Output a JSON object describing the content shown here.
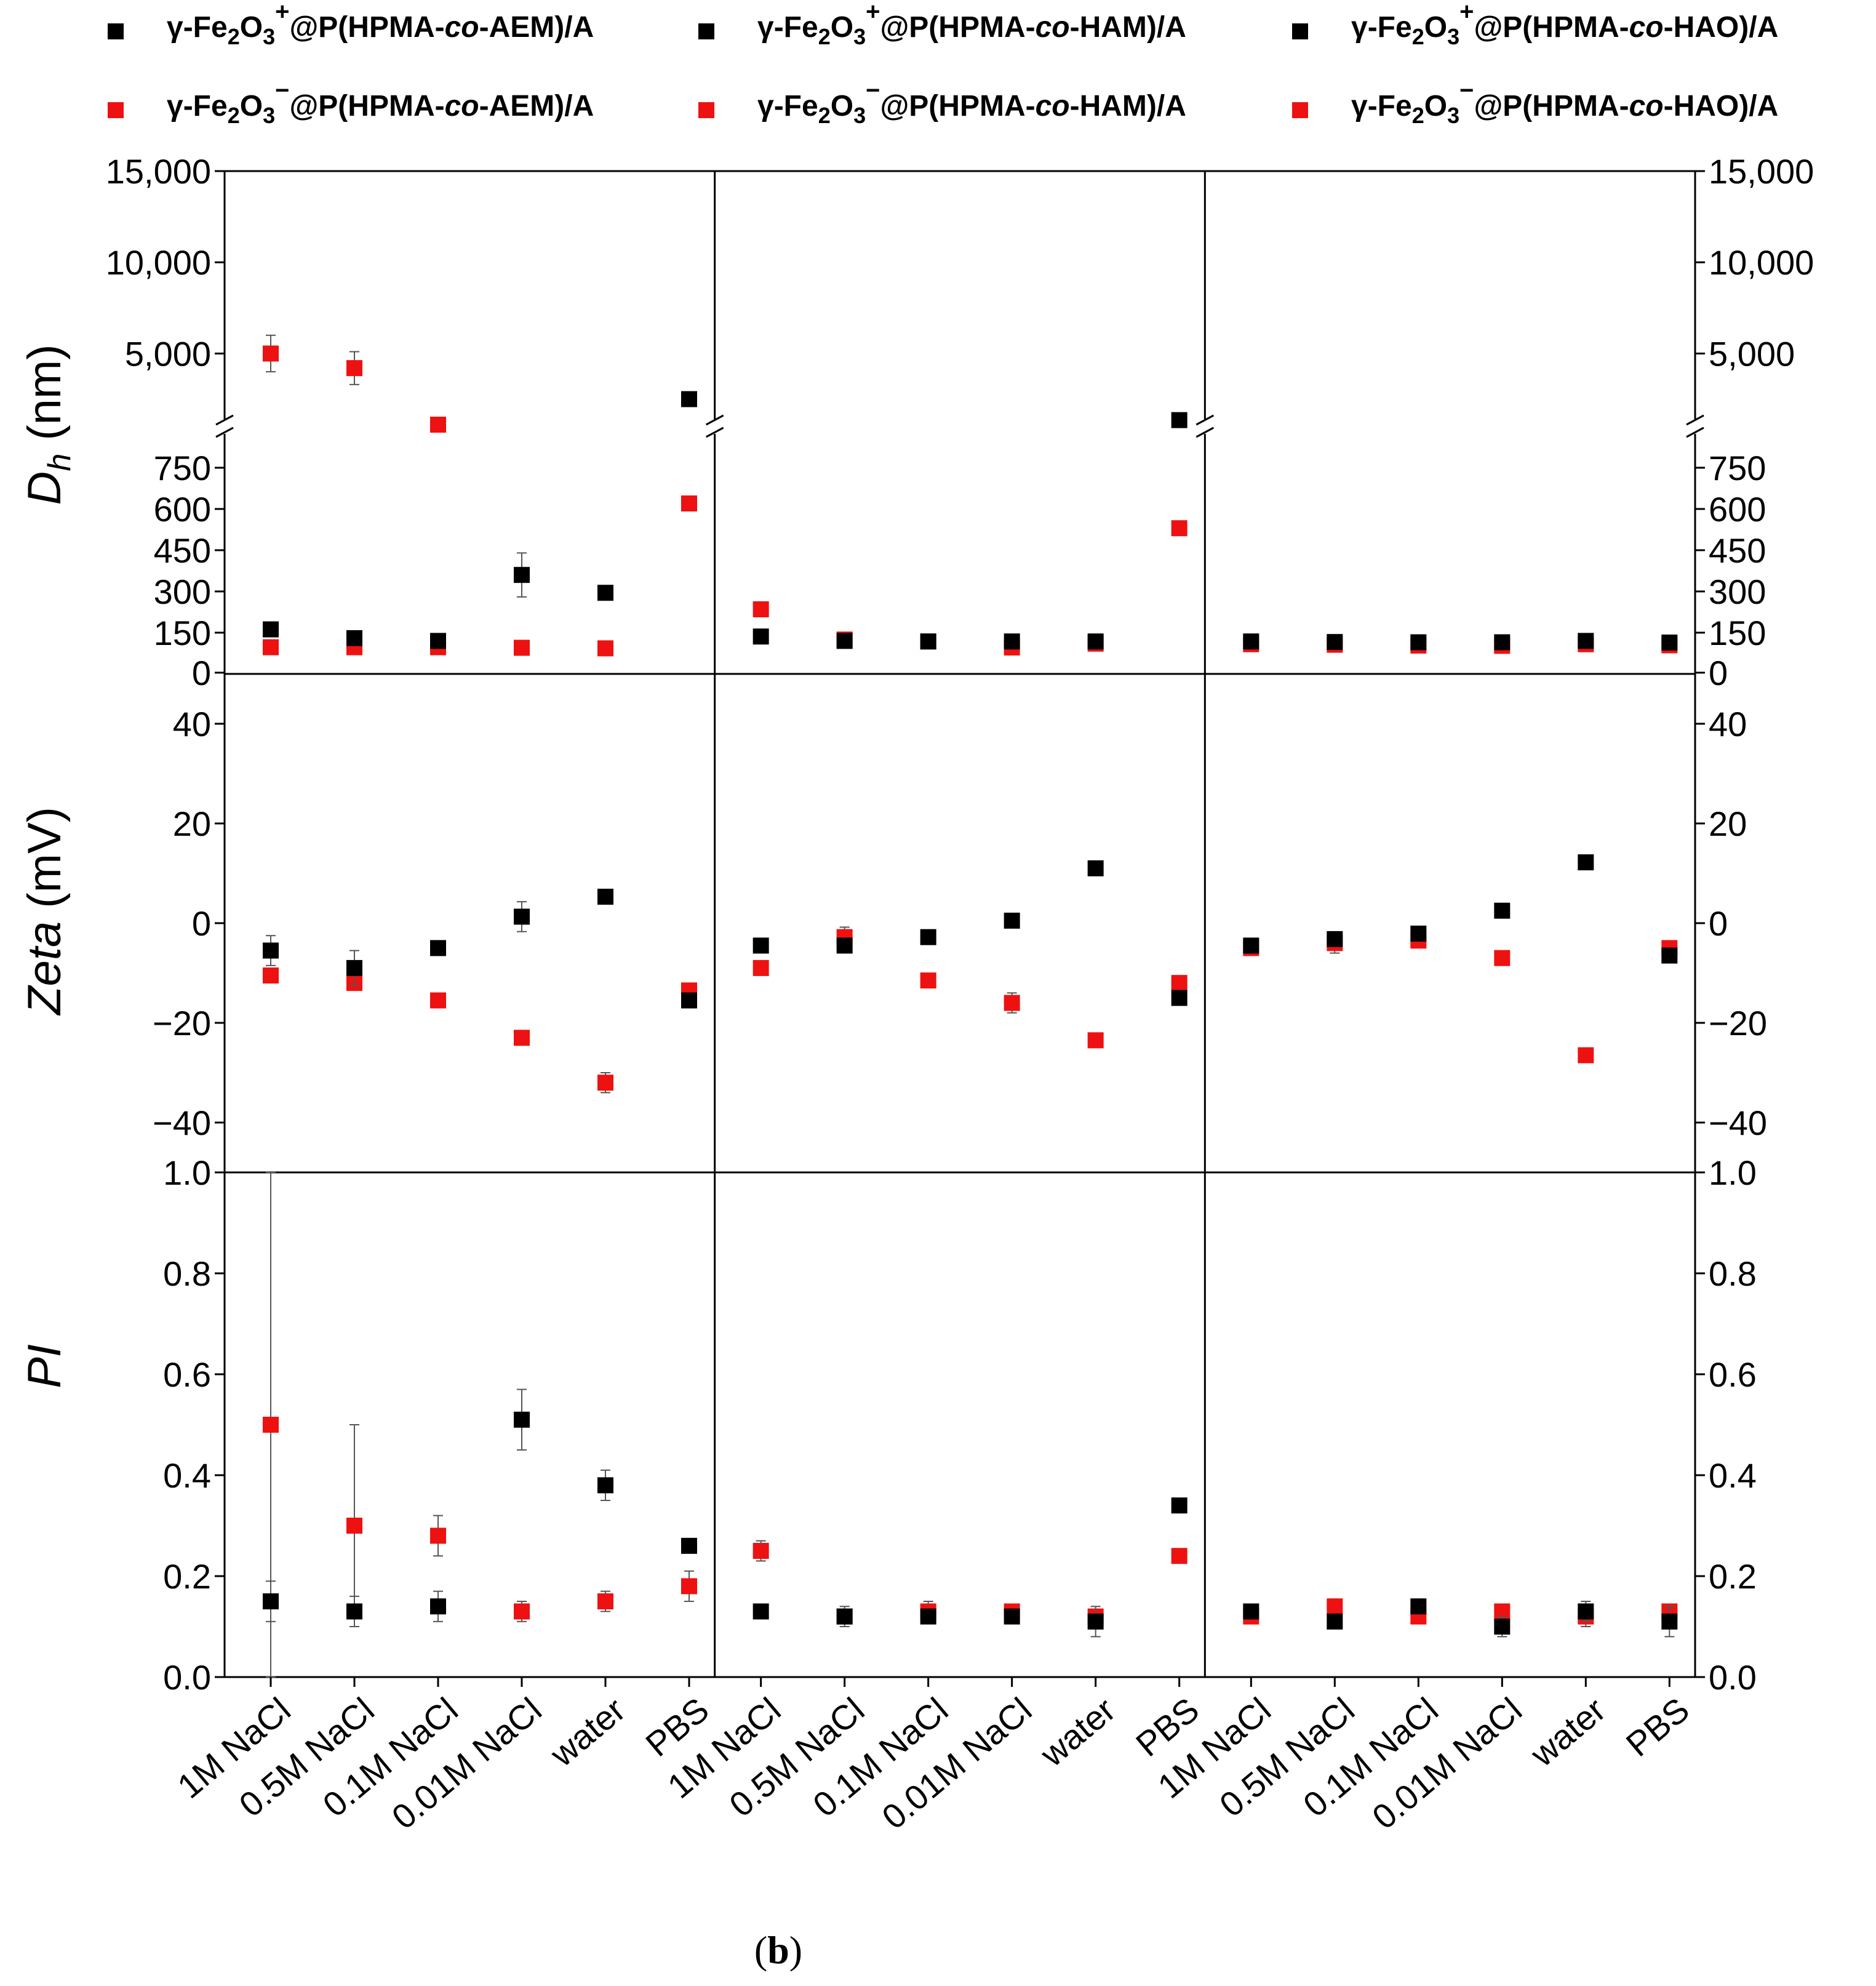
{
  "figure_label": {
    "open": "(",
    "letter": "b",
    "close": ")"
  },
  "colors": {
    "cation": "#000000",
    "anion": "#ee1111",
    "axis": "#000000",
    "error_bar": "#555555"
  },
  "legend": [
    {
      "marker": "cation",
      "prefix": "γ-Fe",
      "sub1": "2",
      "mid": "O",
      "sub2": "3",
      "sup": "+",
      "polymer_pre": "@P(HPMA-",
      "polymer_it": "co",
      "polymer_post": "-AEM)/A"
    },
    {
      "marker": "cation",
      "prefix": "γ-Fe",
      "sub1": "2",
      "mid": "O",
      "sub2": "3",
      "sup": "+",
      "polymer_pre": "@P(HPMA-",
      "polymer_it": "co",
      "polymer_post": "-HAM)/A"
    },
    {
      "marker": "cation",
      "prefix": "γ-Fe",
      "sub1": "2",
      "mid": "O",
      "sub2": "3",
      "sup": "+",
      "polymer_pre": "@P(HPMA-",
      "polymer_it": "co",
      "polymer_post": "-HAO)/A"
    },
    {
      "marker": "anion",
      "prefix": "γ-Fe",
      "sub1": "2",
      "mid": "O",
      "sub2": "3",
      "sup": "−",
      "polymer_pre": "@P(HPMA-",
      "polymer_it": "co",
      "polymer_post": "-AEM)/A"
    },
    {
      "marker": "anion",
      "prefix": "γ-Fe",
      "sub1": "2",
      "mid": "O",
      "sub2": "3",
      "sup": "−",
      "polymer_pre": "@P(HPMA-",
      "polymer_it": "co",
      "polymer_post": "-HAM)/A"
    },
    {
      "marker": "anion",
      "prefix": "γ-Fe",
      "sub1": "2",
      "mid": "O",
      "sub2": "3",
      "sup": "−",
      "polymer_pre": "@P(HPMA-",
      "polymer_it": "co",
      "polymer_post": "-HAO)/A"
    }
  ],
  "chart_data": {
    "type": "scatter",
    "categories": [
      "1M NaCl",
      "0.5M NaCl",
      "0.1M NaCl",
      "0.01M NaCl",
      "water",
      "PBS"
    ],
    "columns": [
      "AEM",
      "HAM",
      "HAO"
    ],
    "series_names": [
      "γ-Fe2O3+",
      "γ-Fe2O3−"
    ],
    "rows": [
      {
        "key": "dh",
        "ylabel_italic": "D",
        "ylabel_sub": "h",
        "ylabel_rest": " (nm)",
        "broken_axis": true,
        "lower_range": [
          0,
          900
        ],
        "upper_range": [
          1000,
          15000
        ],
        "lower_ticks": [
          0,
          150,
          300,
          450,
          600,
          750
        ],
        "lower_tick_labels": [
          "0",
          "150",
          "300",
          "450",
          "600",
          "750"
        ],
        "upper_ticks": [
          5000,
          10000,
          15000
        ],
        "upper_tick_labels": [
          "5,000",
          "10,000",
          "15,000"
        ],
        "panels": [
          {
            "cation": [
              162,
              130,
              120,
              360,
              295,
              2500
            ],
            "cation_err": [
              0,
              0,
              0,
              80,
              0,
              0
            ],
            "anion": [
              97,
              97,
              97,
              95,
              93,
              620
            ],
            "anion_err": [
              0,
              0,
              0,
              0,
              0,
              0
            ],
            "anion_upper": [
              5000,
              4200,
              1100,
              null,
              null,
              null
            ],
            "anion_upper_err": [
              1000,
              900,
              0,
              0,
              0,
              0
            ]
          },
          {
            "cation": [
              136,
              120,
              118,
              118,
              118,
              1350
            ],
            "cation_err": [
              0,
              0,
              0,
              0,
              0,
              0
            ],
            "anion": [
              235,
              125,
              118,
              96,
              110,
              530
            ],
            "anion_err": [
              0,
              0,
              0,
              0,
              0,
              0
            ],
            "anion_upper": [
              null,
              null,
              null,
              null,
              null,
              null
            ],
            "anion_upper_err": [
              0,
              0,
              0,
              0,
              0,
              0
            ]
          },
          {
            "cation": [
              118,
              116,
              115,
              115,
              120,
              114
            ],
            "cation_err": [
              0,
              0,
              0,
              0,
              0,
              0
            ],
            "anion": [
              108,
              106,
              103,
              102,
              108,
              104
            ],
            "anion_err": [
              0,
              0,
              0,
              0,
              0,
              0
            ],
            "anion_upper": [
              null,
              null,
              null,
              null,
              null,
              null
            ],
            "anion_upper_err": [
              0,
              0,
              0,
              0,
              0,
              0
            ]
          }
        ]
      },
      {
        "key": "zeta",
        "ylabel_italic": "Zeta",
        "ylabel_sub": "",
        "ylabel_rest": " (mV)",
        "broken_axis": false,
        "range": [
          -50,
          50
        ],
        "ticks": [
          -40,
          -20,
          0,
          20,
          40
        ],
        "tick_labels": [
          "−40",
          "−20",
          "0",
          "20",
          "40"
        ],
        "panels": [
          {
            "cation": [
              -5.5,
              -9,
              -5,
              1.3,
              5.3,
              -15.5
            ],
            "cation_err": [
              3,
              3.5,
              0,
              3,
              0,
              0
            ],
            "anion": [
              -10.5,
              -12,
              -15.5,
              -23,
              -32,
              -13.5
            ],
            "anion_err": [
              0,
              0,
              0,
              0,
              2,
              0
            ]
          },
          {
            "cation": [
              -4.5,
              -4.5,
              -2.8,
              0.5,
              11,
              -15
            ],
            "cation_err": [
              0,
              0,
              0,
              0,
              0,
              0
            ],
            "anion": [
              -9,
              -2.8,
              -11.5,
              -16,
              -23.5,
              -12
            ],
            "anion_err": [
              0,
              2,
              0,
              2,
              0,
              0
            ]
          },
          {
            "cation": [
              -4.5,
              -3.2,
              -2.1,
              2.5,
              12.2,
              -6.5
            ],
            "cation_err": [
              0,
              0,
              0,
              0,
              0,
              0
            ],
            "anion": [
              -5,
              -4,
              -3.5,
              -7,
              -26.5,
              -5
            ],
            "anion_err": [
              0,
              2,
              0,
              0,
              0,
              0
            ]
          }
        ]
      },
      {
        "key": "pi",
        "ylabel_italic": "PI",
        "ylabel_sub": "",
        "ylabel_rest": "",
        "broken_axis": false,
        "range": [
          0,
          1.0
        ],
        "ticks": [
          0,
          0.2,
          0.4,
          0.6,
          0.8,
          1.0
        ],
        "tick_labels": [
          "0.0",
          "0.2",
          "0.4",
          "0.6",
          "0.8",
          "1.0"
        ],
        "panels": [
          {
            "cation": [
              0.15,
              0.13,
              0.14,
              0.51,
              0.38,
              0.26
            ],
            "cation_err": [
              0.04,
              0.03,
              0.03,
              0.06,
              0.03,
              0
            ],
            "anion": [
              0.5,
              0.3,
              0.28,
              0.13,
              0.15,
              0.18
            ],
            "anion_err": [
              0.5,
              0.2,
              0.04,
              0.02,
              0.02,
              0.03
            ]
          },
          {
            "cation": [
              0.13,
              0.12,
              0.12,
              0.12,
              0.11,
              0.34
            ],
            "cation_err": [
              0,
              0.02,
              0,
              0,
              0.03,
              0
            ],
            "anion": [
              0.25,
              0.12,
              0.13,
              0.13,
              0.12,
              0.24
            ],
            "anion_err": [
              0.02,
              0,
              0.02,
              0,
              0,
              0
            ]
          },
          {
            "cation": [
              0.13,
              0.11,
              0.14,
              0.1,
              0.13,
              0.11
            ],
            "cation_err": [
              0,
              0,
              0,
              0.02,
              0.02,
              0.03
            ],
            "anion": [
              0.12,
              0.14,
              0.12,
              0.13,
              0.12,
              0.13
            ],
            "anion_err": [
              0,
              0,
              0,
              0,
              0.02,
              0
            ]
          }
        ]
      }
    ]
  }
}
